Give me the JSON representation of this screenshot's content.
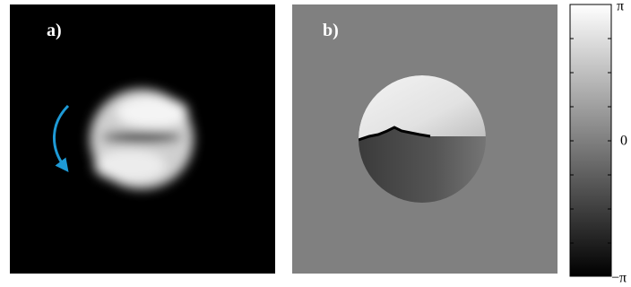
{
  "panels": [
    {
      "label": "a)"
    },
    {
      "label": "b)"
    }
  ],
  "colorbar": {
    "ticks": [
      "π",
      "0",
      "−π"
    ]
  }
}
